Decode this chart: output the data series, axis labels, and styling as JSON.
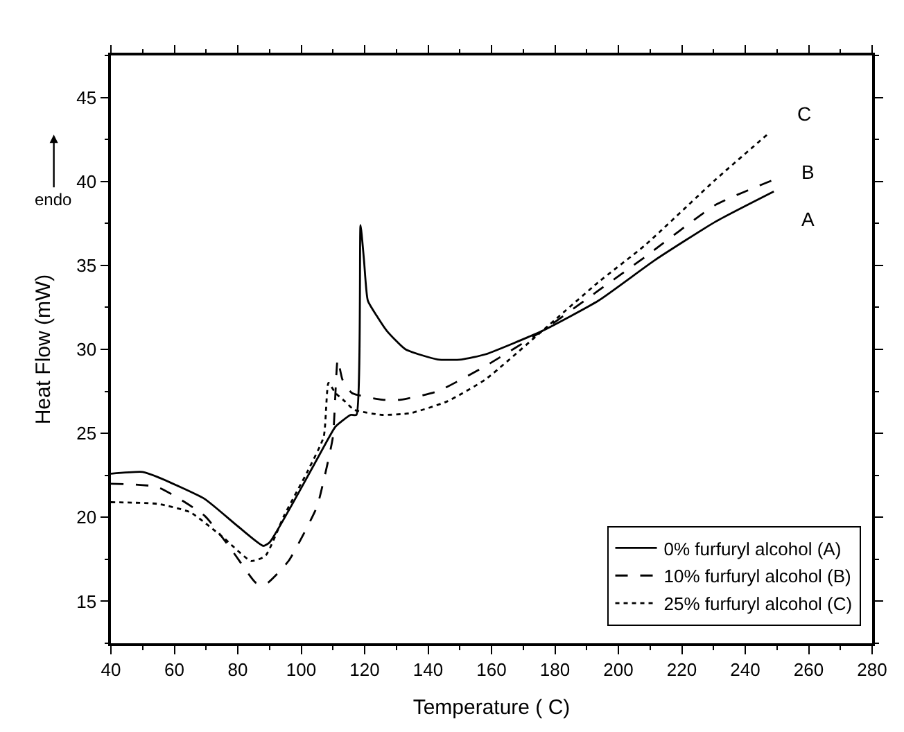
{
  "chart_data": {
    "type": "line",
    "xlabel": "Temperature ( C)",
    "ylabel": "Heat Flow (mW)",
    "xlim": [
      40,
      280
    ],
    "xticks": [
      40,
      60,
      80,
      100,
      120,
      140,
      160,
      180,
      200,
      220,
      240,
      260,
      280
    ],
    "ylim": [
      12.5,
      47.5
    ],
    "yticks": [
      15,
      20,
      25,
      30,
      35,
      40,
      45
    ],
    "legend": "bottom right",
    "marker": "none",
    "series": [
      {
        "name": "0% furfuryl alcohol (A)",
        "color": "#000000",
        "line_style": "solid",
        "x": [
          40,
          50,
          54.7,
          69.5,
          79.8,
          88,
          90,
          99,
          108,
          110.8,
          115.6,
          117.4,
          118.7,
          119.8,
          121,
          123.8,
          127,
          132.9,
          143,
          150.6,
          158,
          176,
          193.7,
          211.4,
          230.6,
          249
        ],
        "values": [
          22.6,
          22.7,
          22.4,
          21.1,
          19.5,
          18.3,
          18.5,
          21.4,
          24.5,
          25.4,
          26.1,
          26.1,
          37.4,
          35.3,
          32.9,
          32.0,
          31.1,
          30.0,
          29.4,
          29.4,
          29.7,
          31.1,
          32.9,
          35.3,
          37.6,
          39.4
        ]
      },
      {
        "name": "10% furfuryl alcohol (B)",
        "color": "#000000",
        "line_style": "dashed",
        "x": [
          40,
          54.7,
          69.5,
          78.3,
          85.7,
          88.7,
          96,
          104.9,
          107.1,
          110,
          111.5,
          113,
          116,
          125.5,
          131.4,
          143,
          158,
          176,
          193.7,
          208.4,
          230.6,
          249
        ],
        "values": [
          22.0,
          21.8,
          20.1,
          18.0,
          16.1,
          16.0,
          17.4,
          20.6,
          22.2,
          24.8,
          29.4,
          28.2,
          27.4,
          27.0,
          27.0,
          27.5,
          29.0,
          31.1,
          33.5,
          35.5,
          38.6,
          40.1
        ]
      },
      {
        "name": "25% furfuryl alcohol (C)",
        "color": "#000000",
        "line_style": "dotted",
        "x": [
          40,
          54.7,
          65,
          75.4,
          84.2,
          88.7,
          94.6,
          101.9,
          107.1,
          108.6,
          110.8,
          113.8,
          116.7,
          125.5,
          134.4,
          146,
          158,
          176,
          193.7,
          208.4,
          230.6,
          247.6
        ],
        "values": [
          20.9,
          20.8,
          20.3,
          18.8,
          17.4,
          17.7,
          20.1,
          22.7,
          24.8,
          28.0,
          27.4,
          26.9,
          26.4,
          26.1,
          26.2,
          26.9,
          28.2,
          31.1,
          34.0,
          36.2,
          40.1,
          42.9
        ]
      }
    ],
    "annotations": [
      "A",
      "B",
      "C",
      "endo"
    ]
  }
}
